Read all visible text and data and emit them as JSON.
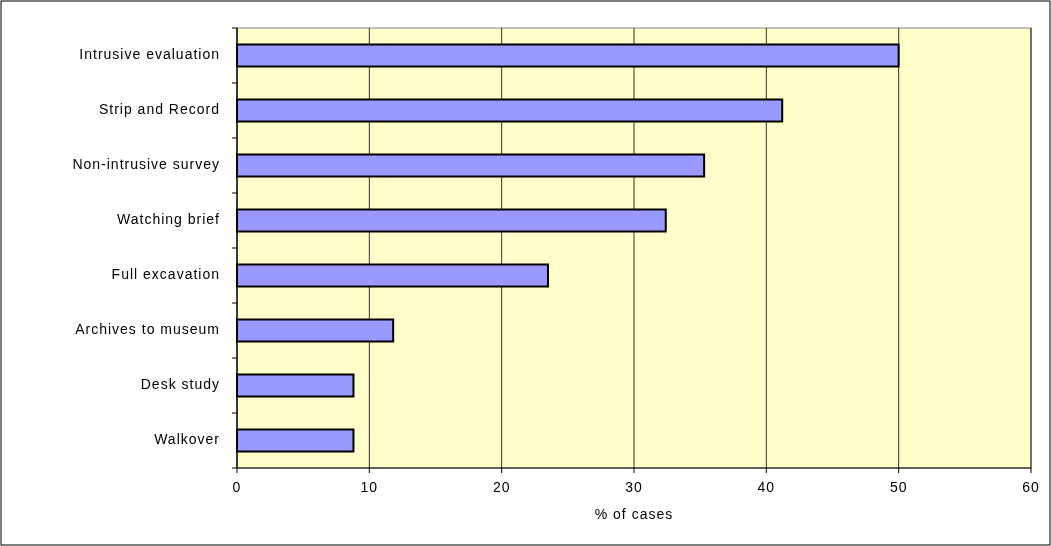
{
  "chart_data": {
    "type": "bar",
    "orientation": "horizontal",
    "xlabel": "% of cases",
    "categories": [
      "Intrusive evaluation",
      "Strip and Record",
      "Non-intrusive survey",
      "Watching brief",
      "Full excavation",
      "Archives to museum",
      "Desk study",
      "Walkover"
    ],
    "values": [
      50,
      41.2,
      35.3,
      32.4,
      23.5,
      11.8,
      8.8,
      8.8
    ],
    "color": "#9999ff",
    "xlim": [
      0,
      60
    ],
    "xticks": [
      0,
      10,
      20,
      30,
      40,
      50,
      60
    ],
    "grid": "x"
  }
}
